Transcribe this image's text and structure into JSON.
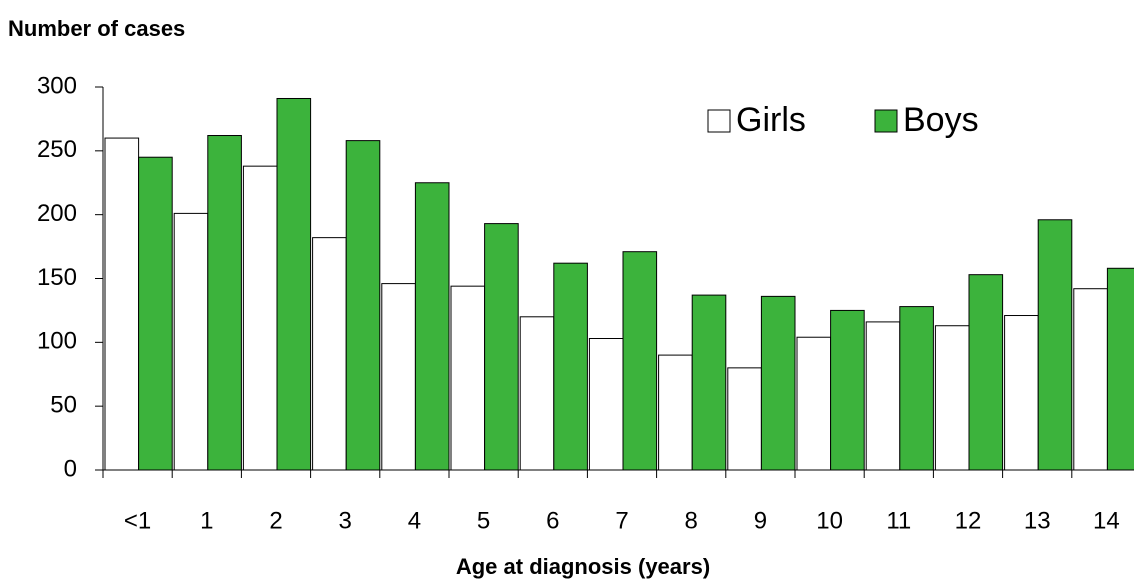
{
  "chart_data": {
    "type": "bar",
    "title": "Number of cases",
    "x_label": "Age at diagnosis (years)",
    "categories": [
      "<1",
      "1",
      "2",
      "3",
      "4",
      "5",
      "6",
      "7",
      "8",
      "9",
      "10",
      "11",
      "12",
      "13",
      "14"
    ],
    "series": [
      {
        "name": "Girls",
        "color": "#ffffff",
        "values": [
          260,
          201,
          238,
          182,
          146,
          144,
          120,
          103,
          90,
          80,
          104,
          116,
          113,
          121,
          142
        ]
      },
      {
        "name": "Boys",
        "color": "#3cb33c",
        "values": [
          245,
          262,
          291,
          258,
          225,
          193,
          162,
          171,
          137,
          136,
          125,
          128,
          153,
          196,
          158
        ]
      }
    ],
    "ylim": [
      0,
      300
    ],
    "yticks": [
      0,
      50,
      100,
      150,
      200,
      250,
      300
    ],
    "grid": false,
    "legend": "upper right"
  }
}
